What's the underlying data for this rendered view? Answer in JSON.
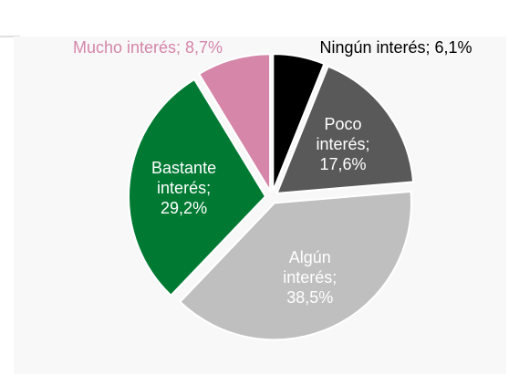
{
  "chart_data": {
    "type": "pie",
    "categories": [
      "Ningún interés",
      "Poco interés",
      "Algún interés",
      "Bastante interés",
      "Mucho interés"
    ],
    "values": [
      6.1,
      17.6,
      38.5,
      29.2,
      8.7
    ],
    "labels": [
      "Ningún interés; 6,1%",
      "Poco interés; 17,6%",
      "Algún interés; 38,5%",
      "Bastante interés; 29,2%",
      "Mucho interés; 8,7%"
    ],
    "colors": [
      "#000000",
      "#595959",
      "#bfbfbf",
      "#007a33",
      "#d586a9"
    ],
    "label_colors": [
      "#000000",
      "#ffffff",
      "#ffffff",
      "#ffffff",
      "#d586a9"
    ]
  }
}
